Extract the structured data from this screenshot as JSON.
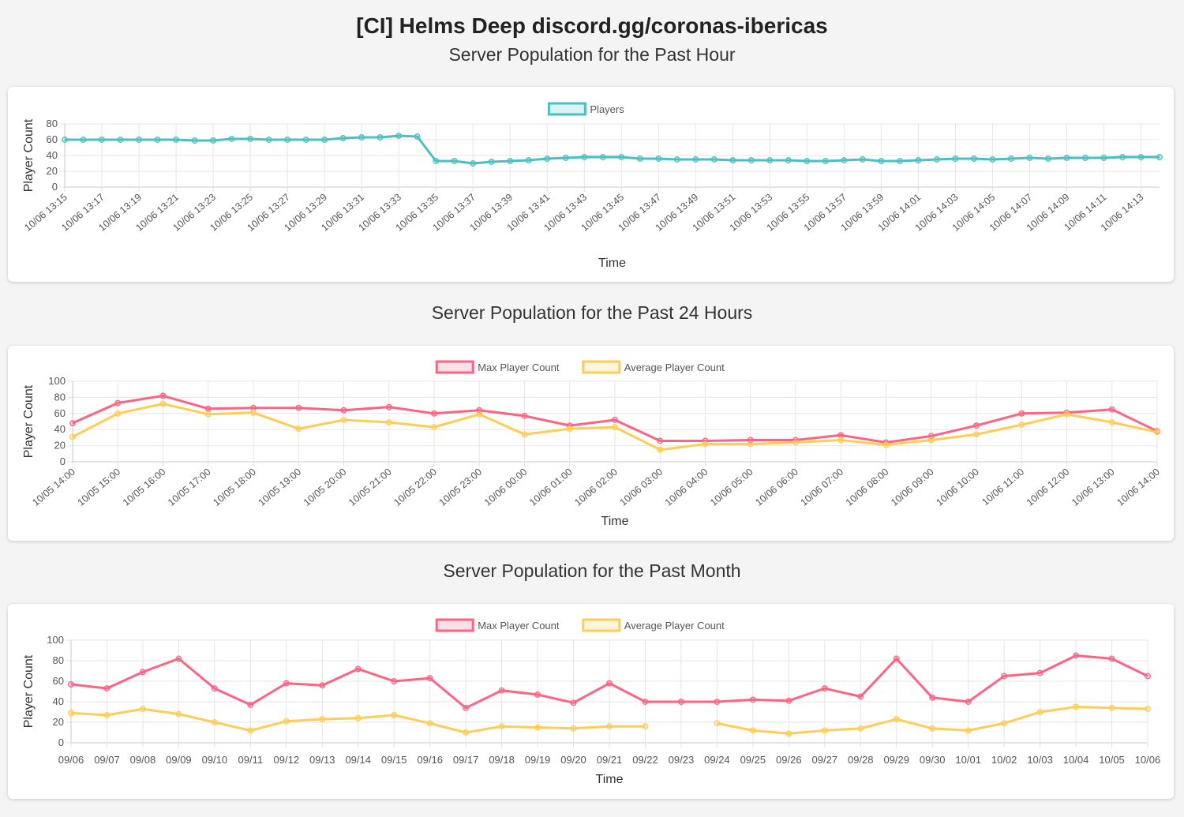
{
  "page": {
    "title": "[CI] Helms Deep discord.gg/coronas-ibericas"
  },
  "colors": {
    "players": "#4bc0c0",
    "max": "#ff6384",
    "avg": "#ffcd56"
  },
  "chart_data": [
    {
      "type": "line",
      "title": "Server Population for the Past Hour",
      "xlabel": "Time",
      "ylabel": "Player Count",
      "ylim": [
        0,
        80
      ],
      "yticks": [
        0,
        20,
        40,
        60,
        80
      ],
      "grid": true,
      "legend": "top-center",
      "categories": [
        "10/06 13:15",
        "10/06 13:16",
        "10/06 13:17",
        "10/06 13:18",
        "10/06 13:19",
        "10/06 13:20",
        "10/06 13:21",
        "10/06 13:22",
        "10/06 13:23",
        "10/06 13:24",
        "10/06 13:25",
        "10/06 13:26",
        "10/06 13:27",
        "10/06 13:28",
        "10/06 13:29",
        "10/06 13:30",
        "10/06 13:31",
        "10/06 13:32",
        "10/06 13:33",
        "10/06 13:34",
        "10/06 13:35",
        "10/06 13:36",
        "10/06 13:37",
        "10/06 13:38",
        "10/06 13:39",
        "10/06 13:40",
        "10/06 13:41",
        "10/06 13:42",
        "10/06 13:43",
        "10/06 13:44",
        "10/06 13:45",
        "10/06 13:46",
        "10/06 13:47",
        "10/06 13:48",
        "10/06 13:49",
        "10/06 13:50",
        "10/06 13:51",
        "10/06 13:52",
        "10/06 13:53",
        "10/06 13:54",
        "10/06 13:55",
        "10/06 13:56",
        "10/06 13:57",
        "10/06 13:58",
        "10/06 13:59",
        "10/06 14:00",
        "10/06 14:01",
        "10/06 14:02",
        "10/06 14:03",
        "10/06 14:04",
        "10/06 14:05",
        "10/06 14:06",
        "10/06 14:07",
        "10/06 14:08",
        "10/06 14:09",
        "10/06 14:10",
        "10/06 14:11",
        "10/06 14:12",
        "10/06 14:13",
        "10/06 14:14"
      ],
      "tickEvery": 2,
      "series": [
        {
          "name": "Players",
          "color": "#4bc0c0",
          "values": [
            60,
            60,
            60,
            60,
            60,
            60,
            60,
            59,
            59,
            61,
            61,
            60,
            60,
            60,
            60,
            62,
            63,
            63,
            65,
            64,
            33,
            33,
            30,
            32,
            33,
            34,
            36,
            37,
            38,
            38,
            38,
            36,
            36,
            35,
            35,
            35,
            34,
            34,
            34,
            34,
            33,
            33,
            34,
            35,
            33,
            33,
            34,
            35,
            36,
            36,
            35,
            36,
            37,
            36,
            37,
            37,
            37,
            38,
            38,
            38
          ]
        }
      ]
    },
    {
      "type": "line",
      "title": "Server Population for the Past 24 Hours",
      "xlabel": "Time",
      "ylabel": "Player Count",
      "ylim": [
        0,
        100
      ],
      "yticks": [
        0,
        20,
        40,
        60,
        80,
        100
      ],
      "grid": true,
      "legend": "top-center",
      "categories": [
        "10/05 14:00",
        "10/05 15:00",
        "10/05 16:00",
        "10/05 17:00",
        "10/05 18:00",
        "10/05 19:00",
        "10/05 20:00",
        "10/05 21:00",
        "10/05 22:00",
        "10/05 23:00",
        "10/06 00:00",
        "10/06 01:00",
        "10/06 02:00",
        "10/06 03:00",
        "10/06 04:00",
        "10/06 05:00",
        "10/06 06:00",
        "10/06 07:00",
        "10/06 08:00",
        "10/06 09:00",
        "10/06 10:00",
        "10/06 11:00",
        "10/06 12:00",
        "10/06 13:00",
        "10/06 14:00"
      ],
      "tickEvery": 1,
      "series": [
        {
          "name": "Max Player Count",
          "color": "#ff6384",
          "values": [
            48,
            73,
            82,
            66,
            67,
            67,
            64,
            68,
            60,
            64,
            57,
            45,
            52,
            26,
            26,
            27,
            27,
            33,
            24,
            32,
            45,
            60,
            61,
            65,
            38
          ]
        },
        {
          "name": "Average Player Count",
          "color": "#ffcd56",
          "values": [
            31,
            60,
            72,
            59,
            61,
            41,
            52,
            49,
            43,
            59,
            34,
            41,
            43,
            15,
            22,
            22,
            24,
            27,
            21,
            27,
            34,
            46,
            59,
            49,
            37
          ]
        }
      ]
    },
    {
      "type": "line",
      "title": "Server Population for the Past Month",
      "xlabel": "Time",
      "ylabel": "Player Count",
      "ylim": [
        0,
        100
      ],
      "yticks": [
        0,
        20,
        40,
        60,
        80,
        100
      ],
      "grid": true,
      "legend": "top-center",
      "categories": [
        "09/06",
        "09/07",
        "09/08",
        "09/09",
        "09/10",
        "09/11",
        "09/12",
        "09/13",
        "09/14",
        "09/15",
        "09/16",
        "09/17",
        "09/18",
        "09/19",
        "09/20",
        "09/21",
        "09/22",
        "09/23",
        "09/24",
        "09/25",
        "09/26",
        "09/27",
        "09/28",
        "09/29",
        "09/30",
        "10/01",
        "10/02",
        "10/03",
        "10/04",
        "10/05",
        "10/06"
      ],
      "tickEvery": 1,
      "series": [
        {
          "name": "Max Player Count",
          "color": "#ff6384",
          "values": [
            57,
            53,
            69,
            82,
            53,
            37,
            58,
            56,
            72,
            60,
            63,
            34,
            51,
            47,
            39,
            58,
            40,
            40,
            40,
            42,
            41,
            53,
            45,
            82,
            44,
            40,
            65,
            68,
            85,
            82,
            65
          ]
        },
        {
          "name": "Average Player Count",
          "color": "#ffcd56",
          "values": [
            29,
            27,
            33,
            28,
            20,
            12,
            21,
            23,
            24,
            27,
            19,
            10,
            16,
            15,
            14,
            16,
            16,
            null,
            19,
            12,
            9,
            12,
            14,
            23,
            14,
            12,
            19,
            30,
            35,
            34,
            33
          ]
        }
      ]
    }
  ]
}
